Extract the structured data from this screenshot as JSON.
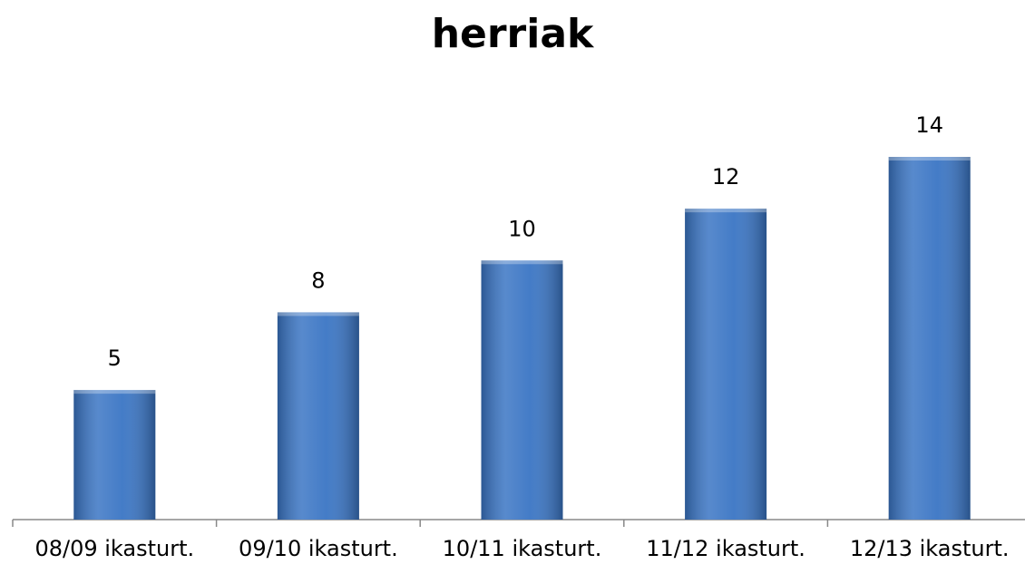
{
  "chart_data": {
    "type": "bar",
    "title": "herriak",
    "categories": [
      "08/09 ikasturt.",
      "09/10 ikasturt.",
      "10/11 ikasturt.",
      "11/12 ikasturt.",
      "12/13 ikasturt."
    ],
    "values": [
      5,
      8,
      10,
      12,
      14
    ],
    "color": "#3a75c4"
  }
}
